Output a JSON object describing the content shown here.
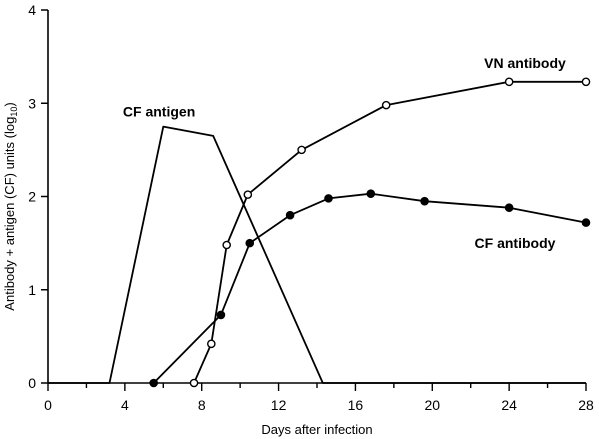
{
  "chart_data": {
    "type": "line",
    "title": "",
    "xlabel": "Days after infection",
    "ylabel": "Antibody + antigen (CF) units (log",
    "ylabel_subscript": "10",
    "ylabel_close": ")",
    "xlim": [
      0,
      28
    ],
    "ylim": [
      0,
      4
    ],
    "x_ticks": [
      "0",
      "4",
      "8",
      "12",
      "16",
      "20",
      "24",
      "28"
    ],
    "y_ticks": [
      "0",
      "1",
      "2",
      "3",
      "4"
    ],
    "grid": false,
    "series": [
      {
        "name": "CF antigen",
        "marker": "none",
        "points": [
          [
            0,
            0
          ],
          [
            3.2,
            0
          ],
          [
            6.0,
            2.75
          ],
          [
            8.6,
            2.65
          ],
          [
            14.3,
            0
          ],
          [
            28,
            0
          ]
        ]
      },
      {
        "name": "VN antibody",
        "marker": "open-circle",
        "points": [
          [
            7.6,
            0
          ],
          [
            8.5,
            0.42
          ],
          [
            9.3,
            1.48
          ],
          [
            10.4,
            2.02
          ],
          [
            13.2,
            2.5
          ],
          [
            17.6,
            2.98
          ],
          [
            24.0,
            3.23
          ],
          [
            28.0,
            3.23
          ]
        ]
      },
      {
        "name": "CF antibody",
        "marker": "filled-circle",
        "points": [
          [
            5.5,
            0
          ],
          [
            9.0,
            0.73
          ],
          [
            10.5,
            1.5
          ],
          [
            12.6,
            1.8
          ],
          [
            14.6,
            1.98
          ],
          [
            16.8,
            2.03
          ],
          [
            19.6,
            1.95
          ],
          [
            24.0,
            1.88
          ],
          [
            28.0,
            1.72
          ]
        ]
      }
    ],
    "annotations": [
      {
        "text": "CF antigen",
        "series": "CF antigen"
      },
      {
        "text": "VN antibody",
        "series": "VN antibody"
      },
      {
        "text": "CF antibody",
        "series": "CF antibody"
      }
    ]
  }
}
